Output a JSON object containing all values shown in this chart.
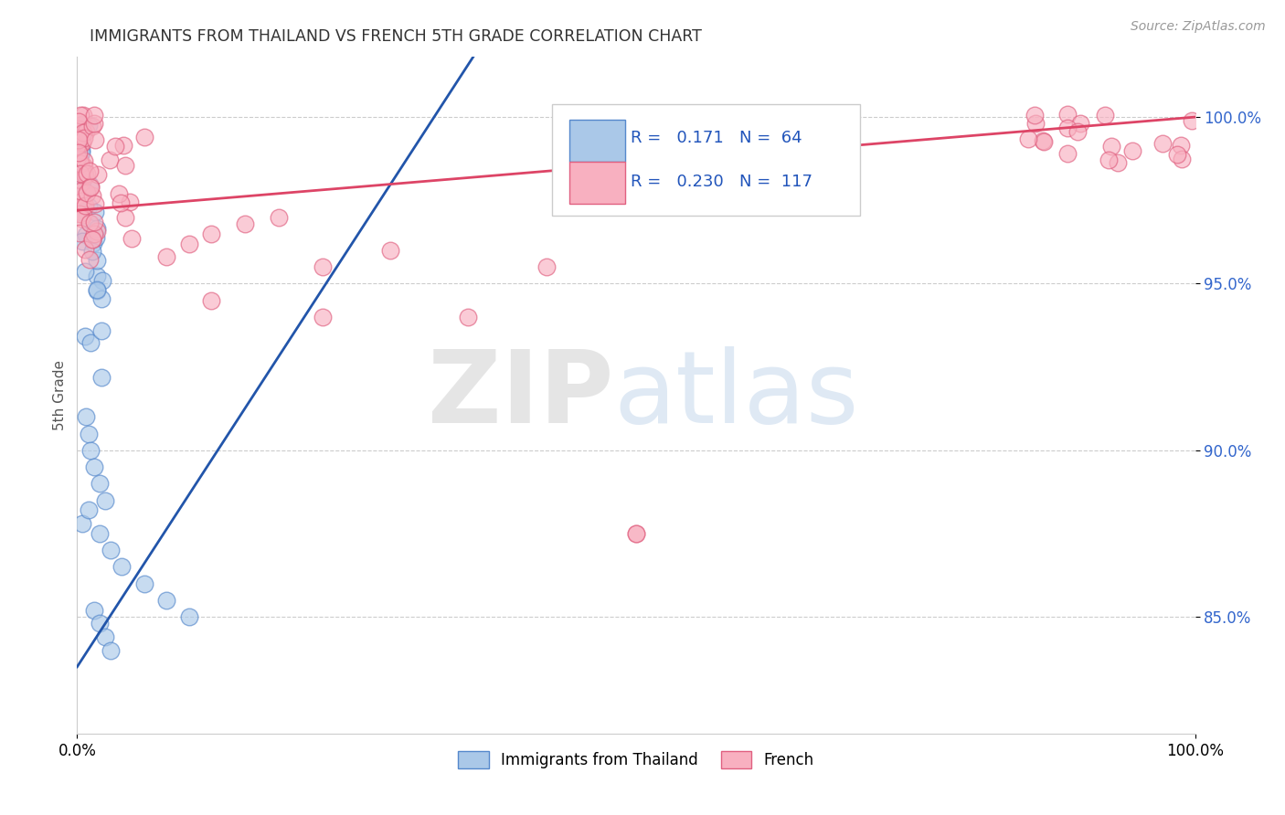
{
  "title": "IMMIGRANTS FROM THAILAND VS FRENCH 5TH GRADE CORRELATION CHART",
  "source": "Source: ZipAtlas.com",
  "ylabel": "5th Grade",
  "xlim": [
    0.0,
    1.0
  ],
  "ylim": [
    0.815,
    1.018
  ],
  "yticks": [
    0.85,
    0.9,
    0.95,
    1.0
  ],
  "ytick_labels": [
    "85.0%",
    "90.0%",
    "95.0%",
    "100.0%"
  ],
  "xtick_labels": [
    "0.0%",
    "100.0%"
  ],
  "blue_R": 0.171,
  "blue_N": 64,
  "pink_R": 0.23,
  "pink_N": 117,
  "blue_color": "#aac8e8",
  "blue_edge_color": "#5588cc",
  "pink_color": "#f8b0c0",
  "pink_edge_color": "#e06080",
  "blue_line_color": "#2255aa",
  "pink_line_color": "#dd4466",
  "background_color": "#ffffff",
  "blue_line_start_y": 0.835,
  "blue_line_end_x": 0.3,
  "blue_line_end_y": 0.99,
  "pink_line_start_y": 0.972,
  "pink_line_end_y": 1.0
}
